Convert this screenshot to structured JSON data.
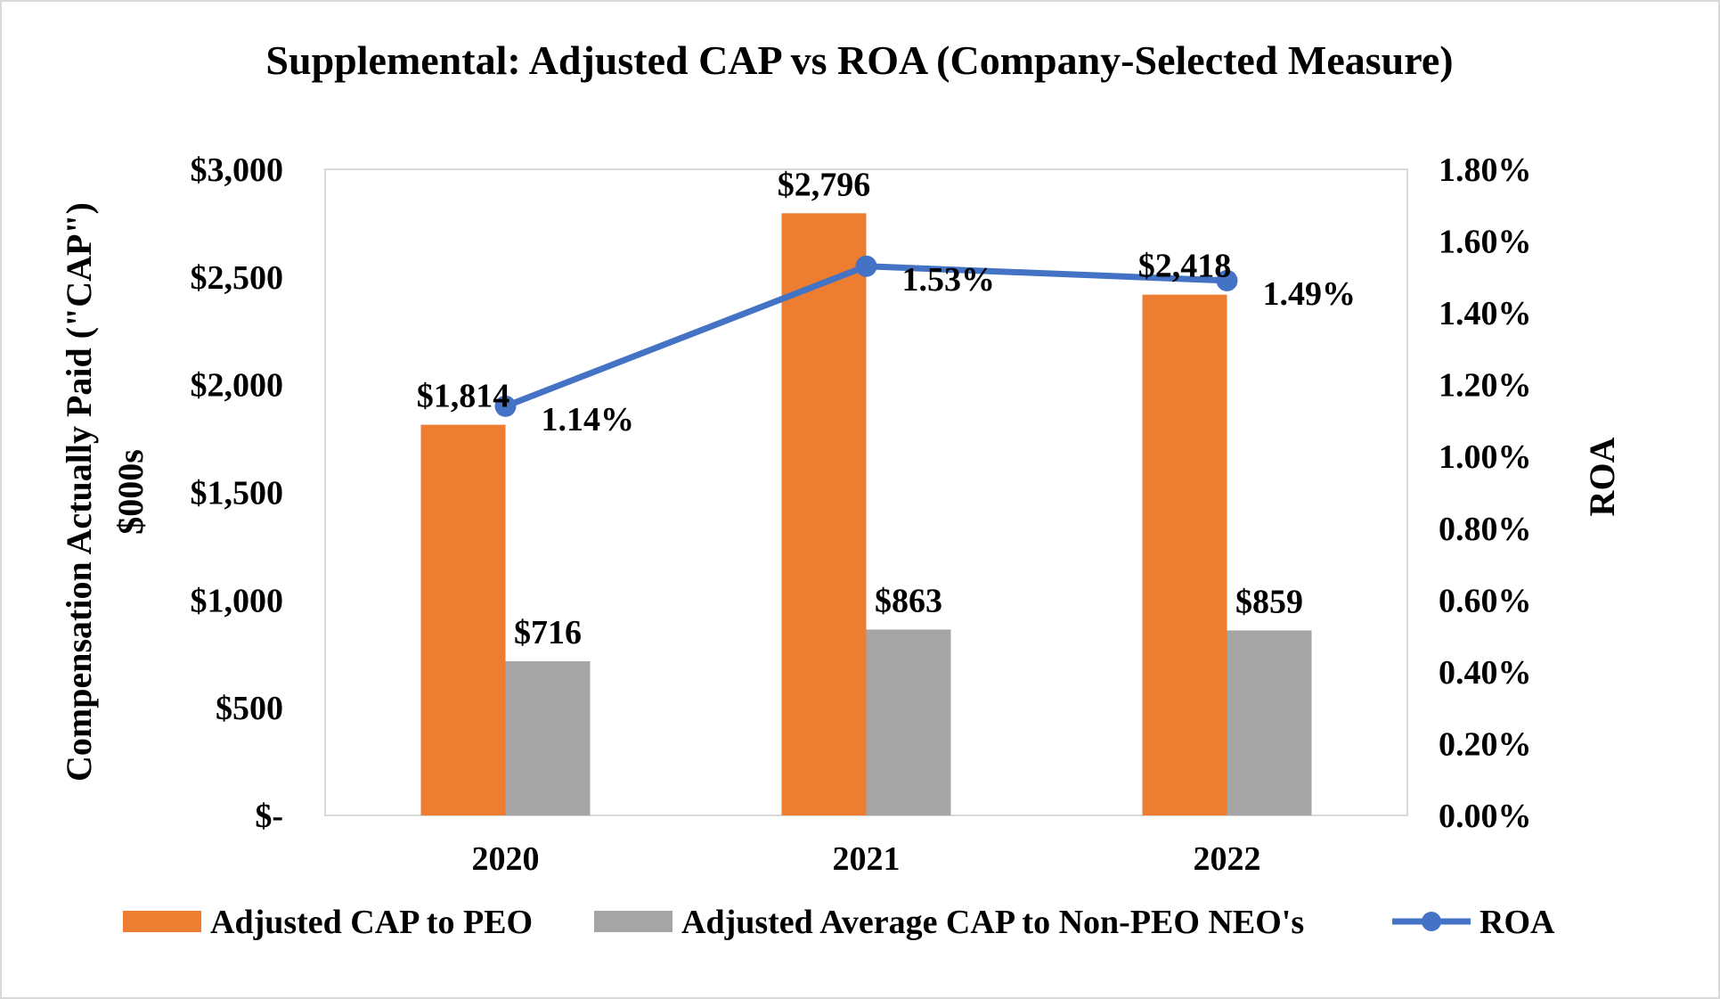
{
  "chart_data": {
    "type": "bar+line",
    "title": "Supplemental:  Adjusted CAP vs ROA (Company-Selected Measure)",
    "categories": [
      "2020",
      "2021",
      "2022"
    ],
    "ylabel_left": [
      "Compensation Actually Paid (\"CAP\")",
      "$000s"
    ],
    "ylabel_right": "ROA",
    "ylim_left": [
      0,
      3000
    ],
    "ylim_right": [
      0,
      1.8
    ],
    "y_ticks_left": [
      "$-",
      "$500",
      "$1,000",
      "$1,500",
      "$2,000",
      "$2,500",
      "$3,000"
    ],
    "y_ticks_right": [
      "0.00%",
      "0.20%",
      "0.40%",
      "0.60%",
      "0.80%",
      "1.00%",
      "1.20%",
      "1.40%",
      "1.60%",
      "1.80%"
    ],
    "series": [
      {
        "name": "Adjusted CAP to PEO",
        "type": "bar",
        "axis": "left",
        "color": "#ED7D31",
        "values": [
          1814,
          2796,
          2418
        ],
        "labels": [
          "$1,814",
          "$2,796",
          "$2,418"
        ]
      },
      {
        "name": "Adjusted Average CAP to Non-PEO NEO's",
        "type": "bar",
        "axis": "left",
        "color": "#A5A5A5",
        "values": [
          716,
          863,
          859
        ],
        "labels": [
          "$716",
          "$863",
          "$859"
        ]
      },
      {
        "name": "ROA",
        "type": "line",
        "axis": "right",
        "color": "#4472C4",
        "values": [
          1.14,
          1.53,
          1.49
        ],
        "labels": [
          "1.14%",
          "1.53%",
          "1.49%"
        ]
      }
    ],
    "legend": "bottom",
    "grid": false
  }
}
